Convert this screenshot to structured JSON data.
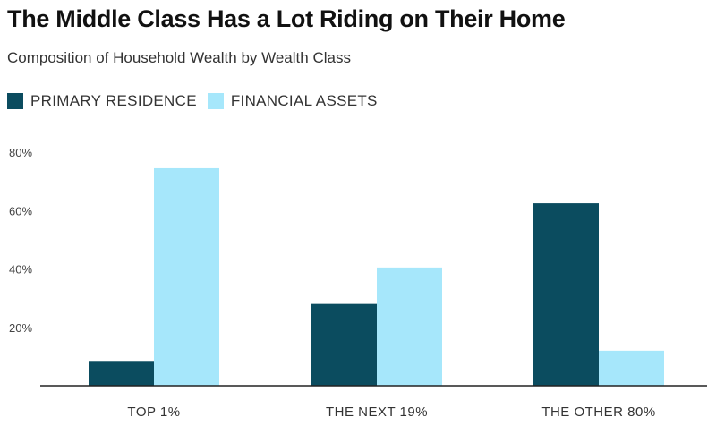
{
  "chart_data": {
    "type": "bar",
    "title": "The Middle Class Has a Lot Riding on Their Home",
    "subtitle": "Composition of Household Wealth by Wealth Class",
    "categories": [
      "TOP 1%",
      "THE NEXT 19%",
      "THE OTHER 80%"
    ],
    "series": [
      {
        "name": "PRIMARY RESIDENCE",
        "color": "#0b4c5f",
        "values": [
          8.5,
          28,
          62.5
        ]
      },
      {
        "name": "FINANCIAL ASSETS",
        "color": "#a6e7fb",
        "values": [
          74.5,
          40.5,
          12
        ]
      }
    ],
    "y_ticks": [
      20,
      40,
      60,
      80
    ],
    "y_tick_labels": [
      "20%",
      "40%",
      "60%",
      "80%"
    ],
    "ylim": [
      0,
      80
    ],
    "grid": false,
    "legend_position": "top-left"
  }
}
